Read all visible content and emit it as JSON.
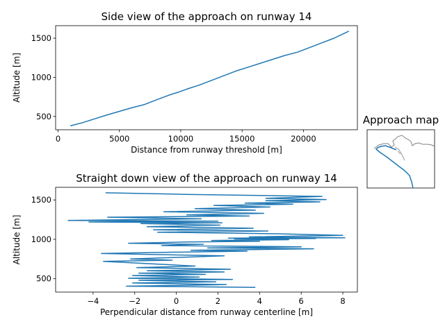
{
  "colors": {
    "series": "#1f77b4",
    "map_line": "#808080"
  },
  "chart_data": [
    {
      "type": "line",
      "title": "Side view of the approach on runway 14",
      "xlabel": "Distance from runway threshold [m]",
      "ylabel": "Altitude [m]",
      "xlim": [
        -200,
        24400
      ],
      "ylim": [
        330,
        1660
      ],
      "xticks": [
        0,
        5000,
        10000,
        15000,
        20000
      ],
      "yticks": [
        500,
        1000,
        1500
      ],
      "grid": false,
      "x": [
        1000,
        2000,
        3000,
        4000,
        5000,
        6000,
        7000,
        8000,
        9000,
        9800,
        10500,
        11500,
        12500,
        13500,
        14500,
        15500,
        16500,
        17500,
        18500,
        19500,
        20500,
        21500,
        22500,
        23300,
        23700
      ],
      "y": [
        380,
        420,
        470,
        520,
        565,
        610,
        650,
        710,
        770,
        810,
        850,
        900,
        960,
        1020,
        1080,
        1130,
        1180,
        1230,
        1280,
        1320,
        1380,
        1440,
        1500,
        1560,
        1590
      ]
    },
    {
      "type": "line",
      "title": "Straight down view of the approach on runway 14",
      "xlabel": "Perpendicular distance from runway centerline [m]",
      "ylabel": "Altitude [m]",
      "xlim": [
        -5.8,
        8.7
      ],
      "ylim": [
        330,
        1660
      ],
      "xticks": [
        -4,
        -2,
        0,
        2,
        4,
        6,
        8
      ],
      "yticks": [
        500,
        1000,
        1500
      ],
      "grid": false,
      "x": [
        3.8,
        -2.4,
        2.4,
        -2.1,
        1.9,
        -1.8,
        2.7,
        -2.3,
        1.1,
        -2.1,
        1.4,
        -1.8,
        2.3,
        -1.4,
        2.6,
        -1.9,
        0.9,
        -3.5,
        -0.2,
        -2.2,
        2.3,
        -3.6,
        -0.6,
        3.4,
        0.7,
        6.6,
        1.5,
        6.0,
        -0.7,
        1.3,
        -2.3,
        0.3,
        4.0,
        1.7,
        5.4,
        2.8,
        6.7,
        2.5,
        8.1,
        3.5,
        8.0,
        4.9,
        -0.9,
        4.4,
        -1.1,
        3.7,
        -1.4,
        2.1,
        -1.7,
        2.2,
        -4.2,
        2.0,
        -5.2,
        1.2,
        -3.3,
        3.5,
        0.5,
        4.2,
        -0.6,
        3.8,
        0.9,
        4.5,
        1.8,
        5.6,
        3.3,
        6.9,
        4.3,
        7.2,
        4.3,
        7.0,
        0.5,
        -3.4
      ],
      "y": [
        390,
        405,
        425,
        445,
        460,
        480,
        490,
        505,
        520,
        540,
        555,
        570,
        585,
        600,
        620,
        640,
        660,
        720,
        735,
        750,
        790,
        820,
        835,
        850,
        860,
        880,
        890,
        905,
        920,
        935,
        950,
        965,
        975,
        985,
        995,
        1005,
        1010,
        1015,
        1020,
        1030,
        1050,
        1070,
        1090,
        1105,
        1120,
        1140,
        1160,
        1180,
        1200,
        1210,
        1220,
        1230,
        1240,
        1260,
        1280,
        1295,
        1310,
        1330,
        1350,
        1370,
        1390,
        1410,
        1430,
        1445,
        1460,
        1475,
        1490,
        1505,
        1520,
        1545,
        1570,
        1590
      ]
    },
    {
      "type": "map",
      "title": "Approach map"
    }
  ]
}
